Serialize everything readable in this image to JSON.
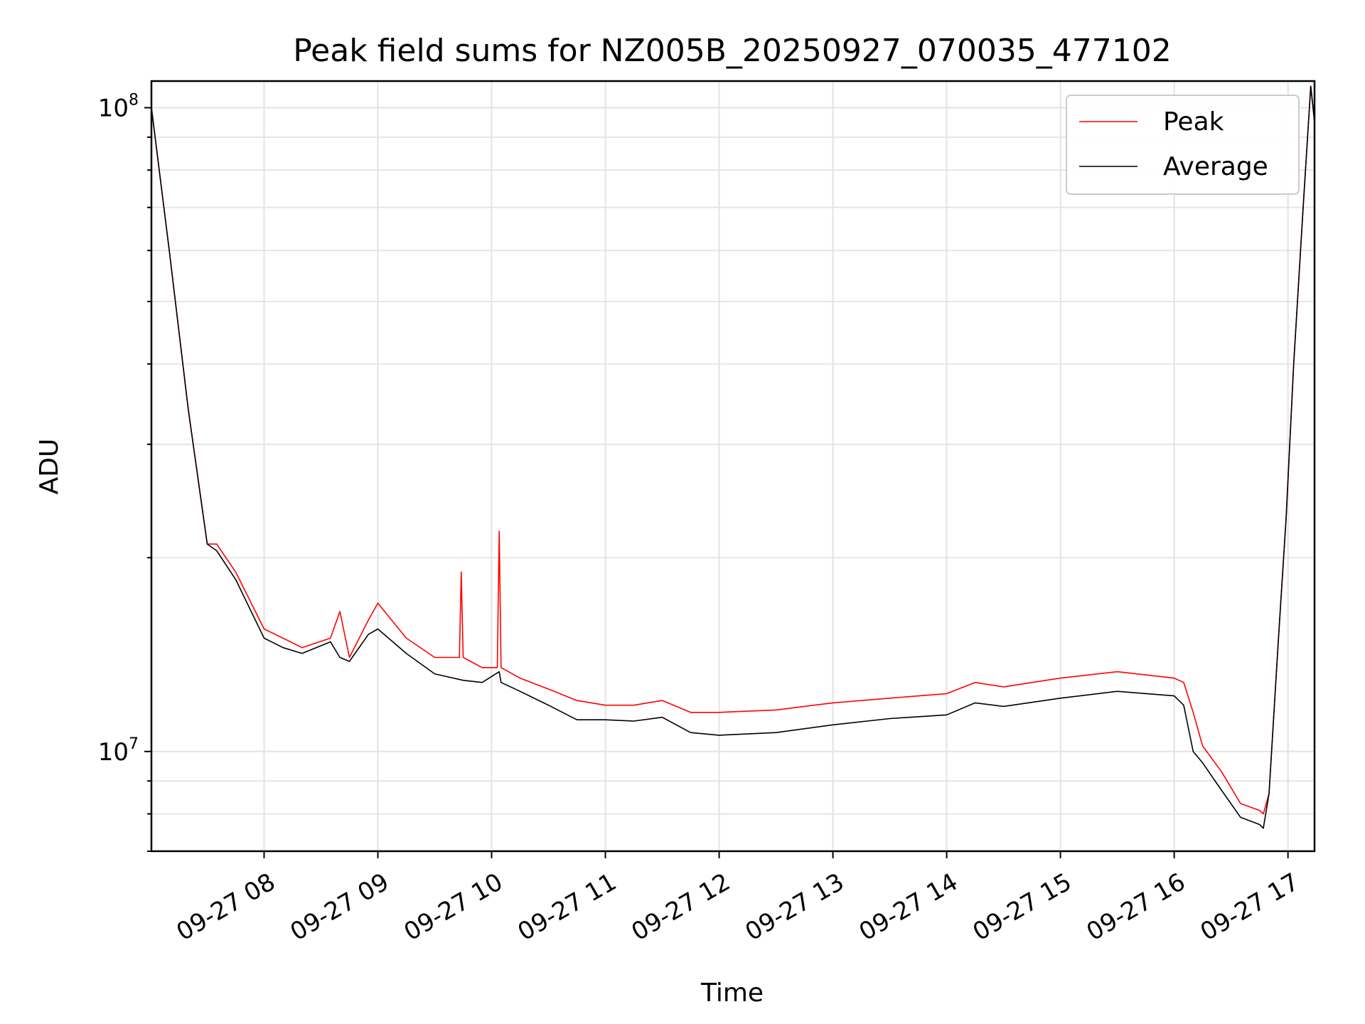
{
  "chart_data": {
    "type": "line",
    "title": "Peak field sums for NZ005B_20250927_070035_477102",
    "xlabel": "Time",
    "ylabel": "ADU",
    "yscale": "log",
    "ylim": [
      7000000,
      110000000
    ],
    "xlim": [
      "2025-09-27T07:00:35",
      "2025-09-27T17:14:00"
    ],
    "grid": true,
    "legend_position": "top-right",
    "x_ticks": [
      "2025-09-27T08:00",
      "2025-09-27T09:00",
      "2025-09-27T10:00",
      "2025-09-27T11:00",
      "2025-09-27T12:00",
      "2025-09-27T13:00",
      "2025-09-27T14:00",
      "2025-09-27T15:00",
      "2025-09-27T16:00",
      "2025-09-27T17:00"
    ],
    "x_tick_labels": [
      "09-27 08",
      "09-27 09",
      "09-27 10",
      "09-27 11",
      "09-27 12",
      "09-27 13",
      "09-27 14",
      "09-27 15",
      "09-27 16",
      "09-27 17"
    ],
    "y_ticks": [
      10000000,
      100000000
    ],
    "y_tick_labels": [
      {
        "base": "10",
        "exp": "7"
      },
      {
        "base": "10",
        "exp": "8"
      }
    ],
    "series": [
      {
        "name": "Peak",
        "color": "#ff0000",
        "x": [
          "2025-09-27T07:00:35",
          "2025-09-27T07:10",
          "2025-09-27T07:20",
          "2025-09-27T07:30",
          "2025-09-27T07:35",
          "2025-09-27T07:45",
          "2025-09-27T08:00",
          "2025-09-27T08:10",
          "2025-09-27T08:20",
          "2025-09-27T08:35",
          "2025-09-27T08:40",
          "2025-09-27T08:45",
          "2025-09-27T08:55",
          "2025-09-27T09:00",
          "2025-09-27T09:15",
          "2025-09-27T09:30",
          "2025-09-27T09:43",
          "2025-09-27T09:44",
          "2025-09-27T09:45",
          "2025-09-27T09:55",
          "2025-09-27T10:03",
          "2025-09-27T10:04",
          "2025-09-27T10:05",
          "2025-09-27T10:15",
          "2025-09-27T10:30",
          "2025-09-27T10:45",
          "2025-09-27T11:00",
          "2025-09-27T11:15",
          "2025-09-27T11:30",
          "2025-09-27T11:45",
          "2025-09-27T12:00",
          "2025-09-27T12:30",
          "2025-09-27T13:00",
          "2025-09-27T13:30",
          "2025-09-27T14:00",
          "2025-09-27T14:15",
          "2025-09-27T14:30",
          "2025-09-27T15:00",
          "2025-09-27T15:30",
          "2025-09-27T16:00",
          "2025-09-27T16:05",
          "2025-09-27T16:10",
          "2025-09-27T16:15",
          "2025-09-27T16:25",
          "2025-09-27T16:35",
          "2025-09-27T16:45",
          "2025-09-27T16:47",
          "2025-09-27T16:50",
          "2025-09-27T16:55",
          "2025-09-27T16:59",
          "2025-09-27T17:03",
          "2025-09-27T17:08",
          "2025-09-27T17:12",
          "2025-09-27T17:14"
        ],
        "values": [
          100000000,
          60000000,
          34000000,
          21000000,
          21000000,
          19000000,
          15500000,
          15000000,
          14500000,
          15000000,
          16500000,
          14000000,
          16000000,
          17000000,
          15000000,
          14000000,
          14000000,
          19000000,
          14000000,
          13500000,
          13500000,
          22000000,
          13500000,
          13000000,
          12500000,
          12000000,
          11800000,
          11800000,
          12000000,
          11500000,
          11500000,
          11600000,
          11900000,
          12100000,
          12300000,
          12800000,
          12600000,
          13000000,
          13300000,
          13000000,
          12800000,
          11500000,
          10200000,
          9300000,
          8300000,
          8100000,
          8000000,
          8600000,
          15000000,
          23000000,
          40000000,
          70000000,
          108000000,
          95000000
        ]
      },
      {
        "name": "Average",
        "color": "#000000",
        "x": [
          "2025-09-27T07:00:35",
          "2025-09-27T07:10",
          "2025-09-27T07:20",
          "2025-09-27T07:30",
          "2025-09-27T07:35",
          "2025-09-27T07:45",
          "2025-09-27T08:00",
          "2025-09-27T08:10",
          "2025-09-27T08:20",
          "2025-09-27T08:35",
          "2025-09-27T08:40",
          "2025-09-27T08:45",
          "2025-09-27T08:55",
          "2025-09-27T09:00",
          "2025-09-27T09:15",
          "2025-09-27T09:30",
          "2025-09-27T09:45",
          "2025-09-27T09:55",
          "2025-09-27T10:04",
          "2025-09-27T10:05",
          "2025-09-27T10:15",
          "2025-09-27T10:30",
          "2025-09-27T10:45",
          "2025-09-27T11:00",
          "2025-09-27T11:15",
          "2025-09-27T11:30",
          "2025-09-27T11:45",
          "2025-09-27T12:00",
          "2025-09-27T12:30",
          "2025-09-27T13:00",
          "2025-09-27T13:30",
          "2025-09-27T14:00",
          "2025-09-27T14:15",
          "2025-09-27T14:30",
          "2025-09-27T15:00",
          "2025-09-27T15:30",
          "2025-09-27T16:00",
          "2025-09-27T16:05",
          "2025-09-27T16:10",
          "2025-09-27T16:15",
          "2025-09-27T16:25",
          "2025-09-27T16:35",
          "2025-09-27T16:45",
          "2025-09-27T16:47",
          "2025-09-27T16:50",
          "2025-09-27T16:55",
          "2025-09-27T16:59",
          "2025-09-27T17:03",
          "2025-09-27T17:08",
          "2025-09-27T17:12",
          "2025-09-27T17:14"
        ],
        "values": [
          100000000,
          60000000,
          34000000,
          21000000,
          20500000,
          18500000,
          15000000,
          14500000,
          14200000,
          14800000,
          14000000,
          13800000,
          15200000,
          15500000,
          14200000,
          13200000,
          12900000,
          12800000,
          13300000,
          12800000,
          12400000,
          11800000,
          11200000,
          11200000,
          11150000,
          11300000,
          10700000,
          10600000,
          10700000,
          11000000,
          11250000,
          11400000,
          11900000,
          11750000,
          12100000,
          12400000,
          12200000,
          11800000,
          10000000,
          9600000,
          8700000,
          7900000,
          7700000,
          7600000,
          8600000,
          15000000,
          23000000,
          40000000,
          70000000,
          108000000,
          95000000
        ]
      }
    ]
  }
}
